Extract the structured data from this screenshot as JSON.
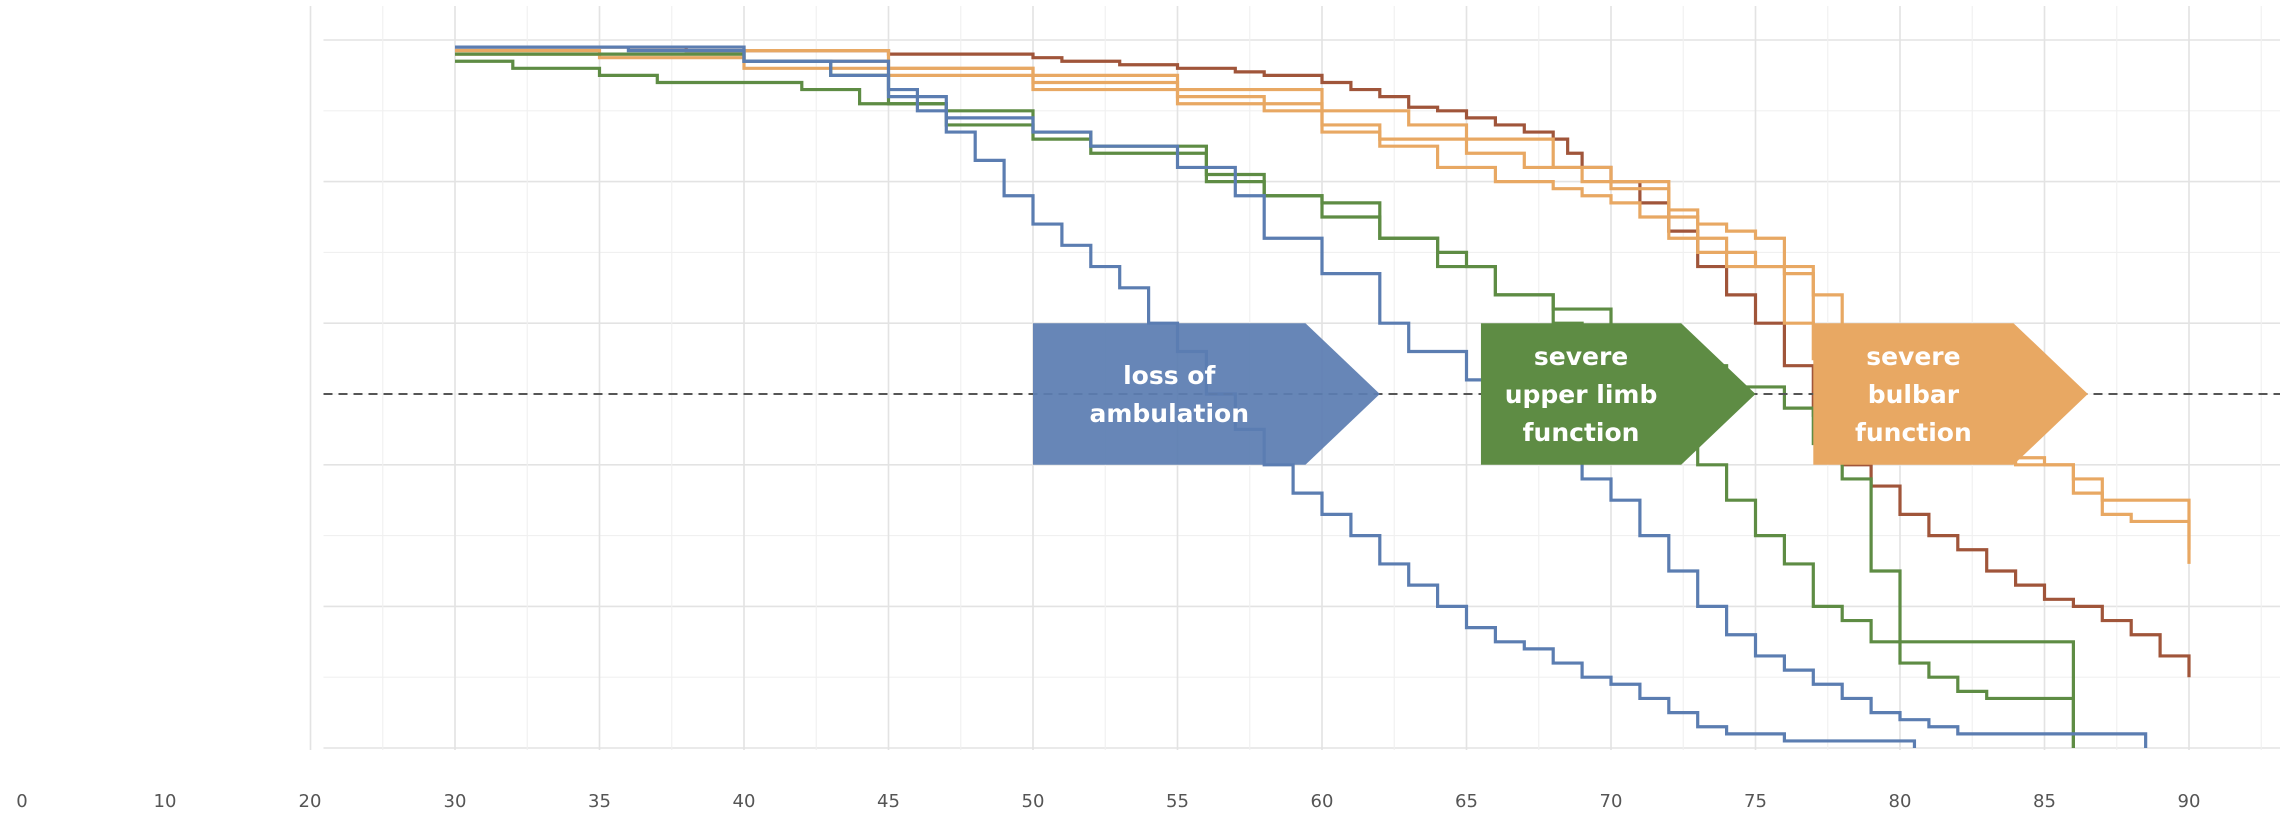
{
  "chart_data": {
    "type": "line",
    "step": true,
    "title": "",
    "xlabel": "",
    "ylabel": "",
    "xlim": [
      25,
      93
    ],
    "ylim": [
      0,
      1
    ],
    "grid": true,
    "legend": "none",
    "x_ticks": [
      30,
      35,
      40,
      45,
      50,
      55,
      60,
      65,
      70,
      75,
      80,
      85,
      90
    ],
    "left_ticks": [
      0,
      10,
      20
    ],
    "reference_line": {
      "y": 0.5,
      "style": "dashed",
      "color": "#555555"
    },
    "colors": {
      "ambulation": "#5b7db1",
      "upper_limb": "#5e8c44",
      "bulbar": "#e8a863",
      "death": "#a0553a"
    },
    "annotations": [
      {
        "lines": [
          "loss of",
          "ambulation"
        ],
        "x_start": 50,
        "x_end": 62,
        "y_top": 0.6,
        "y_bottom": 0.4,
        "color": "#5b7db1"
      },
      {
        "lines": [
          "severe",
          "upper limb",
          "function"
        ],
        "x_start": 65.5,
        "x_end": 75,
        "y_top": 0.6,
        "y_bottom": 0.4,
        "color": "#5e8c44"
      },
      {
        "lines": [
          "severe",
          "bulbar",
          "function"
        ],
        "x_start": 77,
        "x_end": 86.5,
        "y_top": 0.6,
        "y_bottom": 0.4,
        "color": "#e8a863"
      }
    ],
    "series": [
      {
        "group": "death",
        "color": "#a0553a",
        "x": [
          30,
          32.5,
          38,
          45,
          50,
          51,
          53,
          55,
          57,
          58,
          60,
          61,
          62,
          63,
          64,
          65,
          66,
          67,
          68,
          68.5,
          69,
          70,
          71,
          72,
          73,
          74,
          75,
          76,
          77,
          78,
          79,
          80,
          81,
          82,
          83,
          84,
          85,
          86,
          87,
          88,
          89,
          90
        ],
        "y": [
          0.99,
          0.99,
          0.985,
          0.98,
          0.975,
          0.97,
          0.965,
          0.96,
          0.955,
          0.95,
          0.94,
          0.93,
          0.92,
          0.905,
          0.9,
          0.89,
          0.88,
          0.87,
          0.86,
          0.84,
          0.82,
          0.8,
          0.77,
          0.73,
          0.68,
          0.64,
          0.6,
          0.54,
          0.47,
          0.4,
          0.37,
          0.33,
          0.3,
          0.28,
          0.25,
          0.23,
          0.21,
          0.2,
          0.18,
          0.16,
          0.13,
          0.1
        ],
        "end": 90
      },
      {
        "group": "bulbar",
        "color": "#e8a863",
        "x": [
          30,
          40,
          45,
          50,
          55,
          60,
          63,
          65,
          68,
          70,
          72,
          73,
          74,
          75,
          76,
          77,
          78,
          80,
          82,
          84,
          85,
          86,
          87,
          88,
          90
        ],
        "y": [
          0.99,
          0.985,
          0.96,
          0.95,
          0.93,
          0.9,
          0.88,
          0.86,
          0.82,
          0.8,
          0.75,
          0.72,
          0.7,
          0.68,
          0.6,
          0.55,
          0.5,
          0.47,
          0.44,
          0.41,
          0.4,
          0.36,
          0.33,
          0.32,
          0.28
        ],
        "end": 90
      },
      {
        "group": "bulbar",
        "color": "#e8a863",
        "x": [
          30,
          35,
          40,
          45,
          50,
          55,
          58,
          60,
          62,
          65,
          67,
          69,
          70,
          72,
          73,
          74,
          75,
          76,
          77,
          78,
          80,
          82,
          84,
          86,
          87,
          90
        ],
        "y": [
          0.985,
          0.98,
          0.97,
          0.96,
          0.94,
          0.92,
          0.9,
          0.88,
          0.86,
          0.84,
          0.82,
          0.8,
          0.79,
          0.76,
          0.74,
          0.73,
          0.72,
          0.68,
          0.64,
          0.57,
          0.52,
          0.46,
          0.4,
          0.38,
          0.35,
          0.26
        ],
        "end": 90
      },
      {
        "group": "bulbar",
        "color": "#e8a863",
        "x": [
          30,
          35,
          40,
          45,
          50,
          55,
          60,
          62,
          64,
          66,
          68,
          69,
          70,
          71,
          72,
          73,
          74,
          76,
          77
        ],
        "y": [
          0.98,
          0.975,
          0.96,
          0.95,
          0.93,
          0.91,
          0.87,
          0.85,
          0.82,
          0.8,
          0.79,
          0.78,
          0.77,
          0.75,
          0.72,
          0.7,
          0.68,
          0.67,
          0.6
        ],
        "end": 77
      },
      {
        "group": "upper_limb",
        "color": "#5e8c44",
        "x": [
          30,
          32,
          35,
          37,
          42,
          44,
          47,
          50,
          52,
          56,
          58,
          60,
          62,
          64,
          66,
          68,
          69,
          71,
          72,
          73,
          74,
          75,
          76,
          77,
          78,
          79,
          80,
          81,
          82,
          83,
          86
        ],
        "y": [
          0.97,
          0.96,
          0.95,
          0.94,
          0.93,
          0.91,
          0.9,
          0.87,
          0.85,
          0.8,
          0.78,
          0.75,
          0.72,
          0.68,
          0.64,
          0.6,
          0.56,
          0.5,
          0.45,
          0.4,
          0.35,
          0.3,
          0.26,
          0.2,
          0.18,
          0.15,
          0.12,
          0.1,
          0.08,
          0.07,
          0.0
        ],
        "end": 86
      },
      {
        "group": "upper_limb",
        "color": "#5e8c44",
        "x": [
          30,
          40,
          43,
          45,
          47,
          50,
          52,
          56,
          58,
          60,
          62,
          64,
          65,
          66,
          68,
          70,
          72,
          74,
          76,
          77,
          78,
          79,
          80,
          86
        ],
        "y": [
          0.98,
          0.97,
          0.95,
          0.91,
          0.88,
          0.86,
          0.84,
          0.81,
          0.78,
          0.77,
          0.72,
          0.7,
          0.68,
          0.64,
          0.62,
          0.57,
          0.54,
          0.51,
          0.48,
          0.43,
          0.38,
          0.25,
          0.15,
          0.0
        ],
        "end": 86
      },
      {
        "group": "ambulation",
        "color": "#5b7db1",
        "x": [
          30,
          40,
          45,
          46,
          47,
          48,
          49,
          50,
          51,
          52,
          53,
          54,
          55,
          56,
          57,
          58,
          59,
          60,
          61,
          62,
          63,
          64,
          65,
          66,
          67,
          68,
          69,
          70,
          71,
          72,
          73,
          74,
          76,
          80.5
        ],
        "y": [
          0.99,
          0.97,
          0.93,
          0.9,
          0.87,
          0.83,
          0.78,
          0.74,
          0.71,
          0.68,
          0.65,
          0.6,
          0.56,
          0.5,
          0.45,
          0.4,
          0.36,
          0.33,
          0.3,
          0.26,
          0.23,
          0.2,
          0.17,
          0.15,
          0.14,
          0.12,
          0.1,
          0.09,
          0.07,
          0.05,
          0.03,
          0.02,
          0.01,
          0.0
        ],
        "end": 80.5
      },
      {
        "group": "ambulation",
        "color": "#5b7db1",
        "x": [
          30,
          36,
          40,
          43,
          45,
          47,
          50,
          52,
          55,
          57,
          58,
          60,
          62,
          63,
          65,
          66,
          67,
          68,
          69,
          70,
          71,
          72,
          73,
          74,
          75,
          76,
          77,
          78,
          79,
          80,
          81,
          82,
          88.5
        ],
        "y": [
          0.99,
          0.985,
          0.97,
          0.95,
          0.92,
          0.89,
          0.87,
          0.85,
          0.82,
          0.78,
          0.72,
          0.67,
          0.6,
          0.56,
          0.52,
          0.49,
          0.45,
          0.41,
          0.38,
          0.35,
          0.3,
          0.25,
          0.2,
          0.16,
          0.13,
          0.11,
          0.09,
          0.07,
          0.05,
          0.04,
          0.03,
          0.02,
          0.0
        ],
        "end": 88.5
      }
    ]
  }
}
